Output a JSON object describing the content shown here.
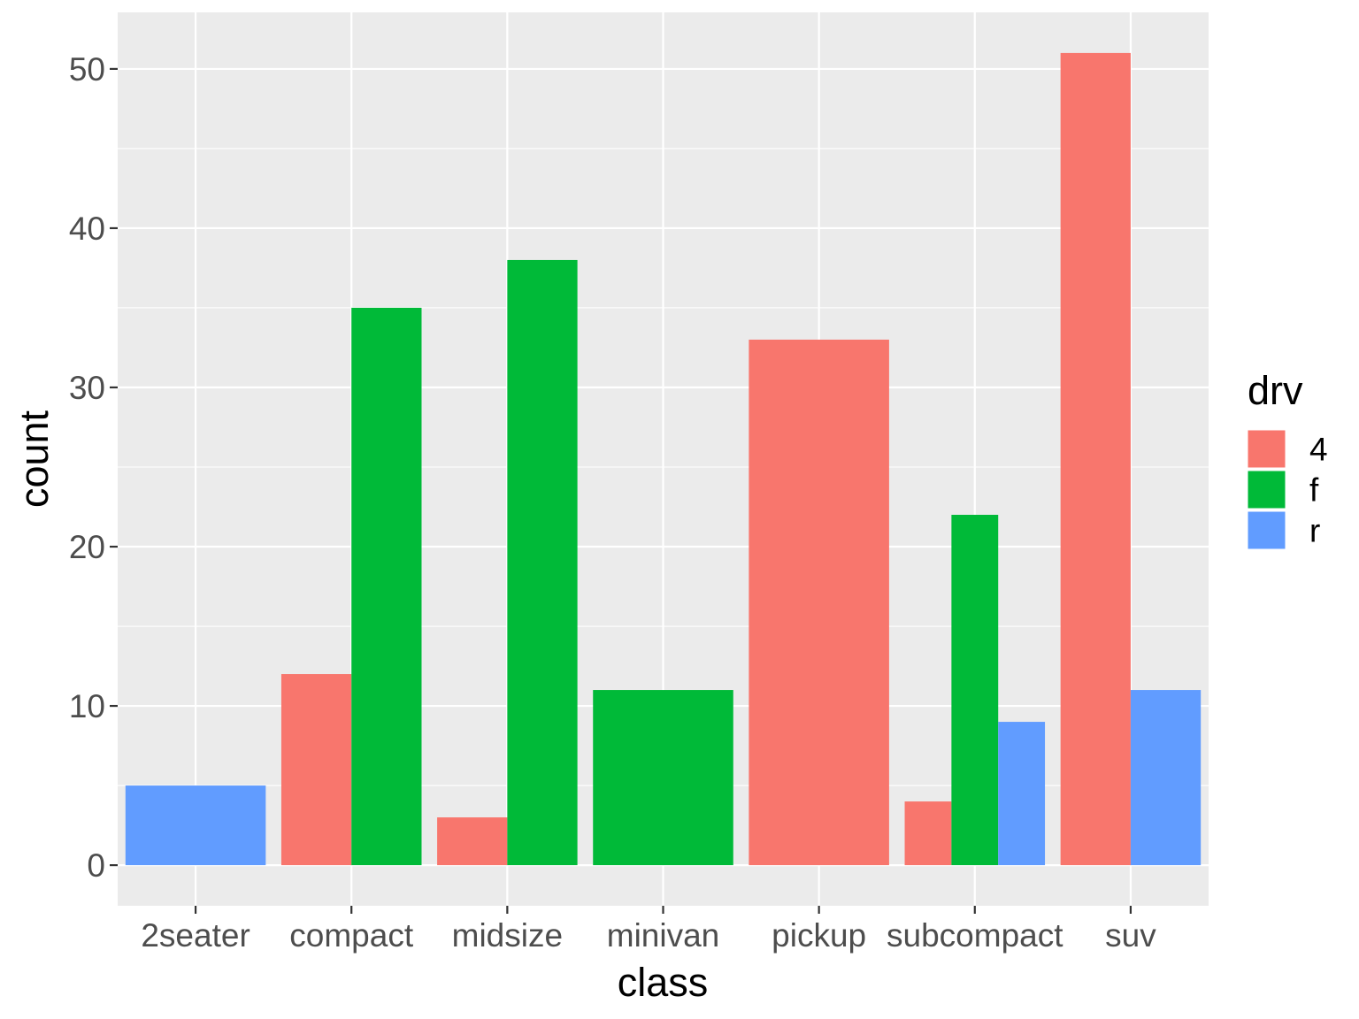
{
  "chart_data": {
    "type": "bar",
    "position": "dodge",
    "categories": [
      "2seater",
      "compact",
      "midsize",
      "minivan",
      "pickup",
      "subcompact",
      "suv"
    ],
    "series": [
      {
        "name": "4",
        "color": "#F8766D",
        "values": [
          null,
          12,
          3,
          null,
          33,
          4,
          51
        ]
      },
      {
        "name": "f",
        "color": "#00BA38",
        "values": [
          null,
          35,
          38,
          11,
          null,
          22,
          null
        ]
      },
      {
        "name": "r",
        "color": "#619CFF",
        "values": [
          5,
          null,
          null,
          null,
          null,
          9,
          11
        ]
      }
    ],
    "xlabel": "class",
    "ylabel": "count",
    "ylim": [
      -2.55,
      53.55
    ],
    "yticks": [
      0,
      10,
      20,
      30,
      40,
      50
    ],
    "ytick_labels": [
      "0",
      "10",
      "20",
      "30",
      "40",
      "50"
    ],
    "legend_title": "drv",
    "legend_position": "right",
    "panel_background": "#EBEBEB",
    "grid_color": "#FFFFFF",
    "grid": true
  }
}
